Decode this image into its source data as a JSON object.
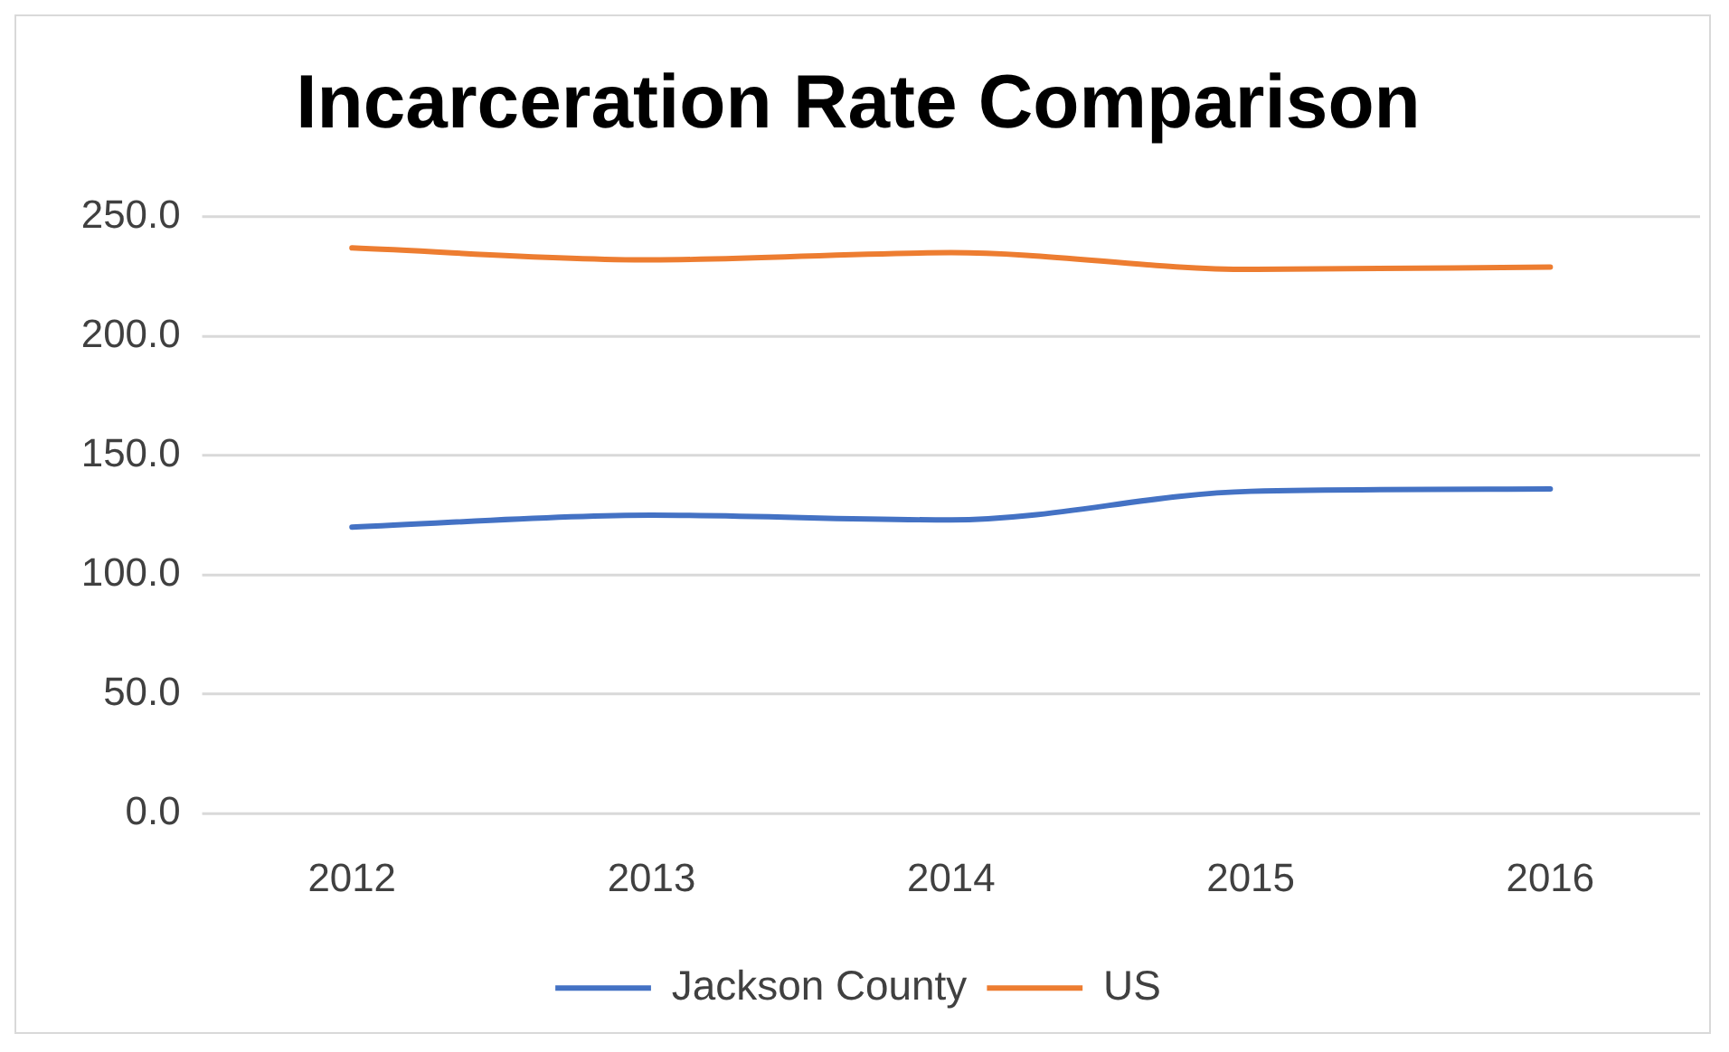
{
  "chart_data": {
    "type": "line",
    "title": "Incarceration Rate Comparison",
    "categories": [
      "2012",
      "2013",
      "2014",
      "2015",
      "2016"
    ],
    "series": [
      {
        "name": "Jackson County",
        "color": "#4472c4",
        "values": [
          120,
          125,
          123,
          135,
          136
        ]
      },
      {
        "name": "US",
        "color": "#ed7d31",
        "values": [
          237,
          232,
          235,
          228,
          229
        ]
      }
    ],
    "ylim": [
      0,
      250
    ],
    "yticks": [
      {
        "value": 0,
        "label": "0.0"
      },
      {
        "value": 50,
        "label": "50.0"
      },
      {
        "value": 100,
        "label": "100.0"
      },
      {
        "value": 150,
        "label": "150.0"
      },
      {
        "value": 200,
        "label": "200.0"
      },
      {
        "value": 250,
        "label": "250.0"
      }
    ],
    "grid": "y",
    "legend": "bottom",
    "marker": "none",
    "line_style": "solid"
  }
}
